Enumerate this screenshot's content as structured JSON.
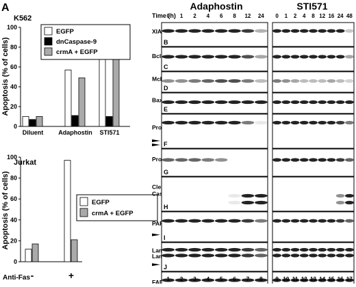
{
  "figure": {
    "panel_letter": "A",
    "fill_colors": {
      "egfp": "#ffffff",
      "dncaspase9": "#000000",
      "crma": "#aaaaaa",
      "outline": "#000000"
    }
  },
  "chart_data": [
    {
      "type": "bar",
      "title": "K562",
      "ylabel": "Apoptosis (% of cells)",
      "ylim": [
        0,
        100
      ],
      "yticks": [
        0,
        20,
        40,
        60,
        80,
        100
      ],
      "categories": [
        "Diluent",
        "Adaphostin",
        "STI571"
      ],
      "series": [
        {
          "name": "EGFP",
          "color": "#ffffff",
          "values": [
            10,
            57,
            83
          ]
        },
        {
          "name": "dnCaspase-9",
          "color": "#000000",
          "values": [
            7,
            11,
            10
          ]
        },
        {
          "name": "crmA + EGFP",
          "color": "#aaaaaa",
          "values": [
            10,
            49,
            89
          ]
        }
      ],
      "legend": "top-right"
    },
    {
      "type": "bar",
      "title": "Jurkat",
      "ylabel": "Apoptosis (% of cells)",
      "ylim": [
        0,
        100
      ],
      "yticks": [
        0,
        20,
        40,
        60,
        80,
        100
      ],
      "xlabel_left": "Anti-Fas",
      "categories": [
        "-",
        "+"
      ],
      "series": [
        {
          "name": "EGFP",
          "color": "#ffffff",
          "values": [
            12,
            97
          ]
        },
        {
          "name": "crmA + EGFP",
          "color": "#aaaaaa",
          "values": [
            17,
            21
          ]
        }
      ],
      "legend": "right"
    }
  ],
  "blots": {
    "groups": [
      {
        "title": "Adaphostin",
        "times": [
          "0",
          "1",
          "2",
          "4",
          "6",
          "8",
          "12",
          "24"
        ],
        "lanes": [
          "1",
          "2",
          "3",
          "4",
          "5",
          "6",
          "7",
          "8"
        ]
      },
      {
        "title": "STI571",
        "times": [
          "0",
          "1",
          "2",
          "4",
          "8",
          "12",
          "16",
          "24",
          "48"
        ],
        "lanes": [
          "9",
          "10",
          "11",
          "12",
          "13",
          "14",
          "15",
          "16",
          "17"
        ]
      }
    ],
    "time_label": "Time (h)",
    "panels": [
      {
        "label": "XIAP",
        "letter": "B"
      },
      {
        "label": "Bcl-x",
        "sub": "L",
        "letter": "C"
      },
      {
        "label": "Mcl-1",
        "letter": "D"
      },
      {
        "label": "Bax",
        "letter": "E"
      },
      {
        "label": "Procaspase-9",
        "letter": "F"
      },
      {
        "label": "Procaspase-3",
        "letter": "G"
      },
      {
        "label": "Cleaved",
        "label2": "Caspase-3",
        "letter": "H"
      },
      {
        "label": "PARP",
        "letter": "I"
      },
      {
        "label": "Lamin A",
        "label2": "Lamin C",
        "letter": "J"
      },
      {
        "label": "FADD",
        "letter": "K"
      }
    ]
  }
}
